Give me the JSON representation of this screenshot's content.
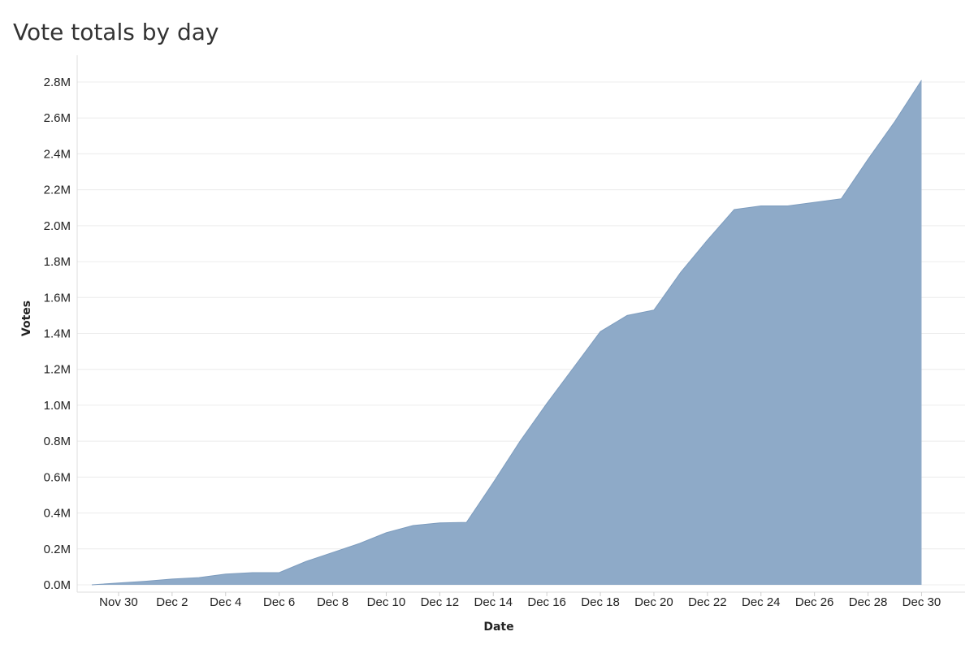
{
  "chart_data": {
    "type": "area",
    "title": "Vote totals by day",
    "xlabel": "Date",
    "ylabel": "Votes",
    "x": [
      "Nov 29",
      "Nov 30",
      "Dec 1",
      "Dec 2",
      "Dec 3",
      "Dec 4",
      "Dec 5",
      "Dec 6",
      "Dec 7",
      "Dec 8",
      "Dec 9",
      "Dec 10",
      "Dec 11",
      "Dec 12",
      "Dec 13",
      "Dec 14",
      "Dec 15",
      "Dec 16",
      "Dec 17",
      "Dec 18",
      "Dec 19",
      "Dec 20",
      "Dec 21",
      "Dec 22",
      "Dec 23",
      "Dec 24",
      "Dec 25",
      "Dec 26",
      "Dec 27",
      "Dec 28",
      "Dec 29",
      "Dec 30"
    ],
    "series": [
      {
        "values": [
          0,
          10000,
          20000,
          32000,
          40000,
          60000,
          68000,
          68000,
          130000,
          180000,
          230000,
          290000,
          330000,
          345000,
          348000,
          570000,
          800000,
          1010000,
          1210000,
          1410000,
          1500000,
          1530000,
          1740000,
          1920000,
          2090000,
          2110000,
          2110000,
          2130000,
          2150000,
          2370000,
          2580000,
          2810000
        ]
      }
    ],
    "x_tick_labels": [
      "Nov 30",
      "Dec 2",
      "Dec 4",
      "Dec 6",
      "Dec 8",
      "Dec 10",
      "Dec 12",
      "Dec 14",
      "Dec 16",
      "Dec 18",
      "Dec 20",
      "Dec 22",
      "Dec 24",
      "Dec 26",
      "Dec 28",
      "Dec 30"
    ],
    "y_ticks": [
      0,
      200000,
      400000,
      600000,
      800000,
      1000000,
      1200000,
      1400000,
      1600000,
      1800000,
      2000000,
      2200000,
      2400000,
      2600000,
      2800000
    ],
    "y_tick_labels": [
      "0.0M",
      "0.2M",
      "0.4M",
      "0.6M",
      "0.8M",
      "1.0M",
      "1.2M",
      "1.4M",
      "1.6M",
      "1.8M",
      "2.0M",
      "2.2M",
      "2.4M",
      "2.6M",
      "2.8M"
    ],
    "ylim": [
      0,
      2800000
    ],
    "grid": true,
    "legend": "none",
    "colors": {
      "area_fill": "#8eaac8",
      "area_stroke": "#7d9cbe",
      "grid": "#ececec",
      "axis": "#d9d9d9"
    }
  }
}
